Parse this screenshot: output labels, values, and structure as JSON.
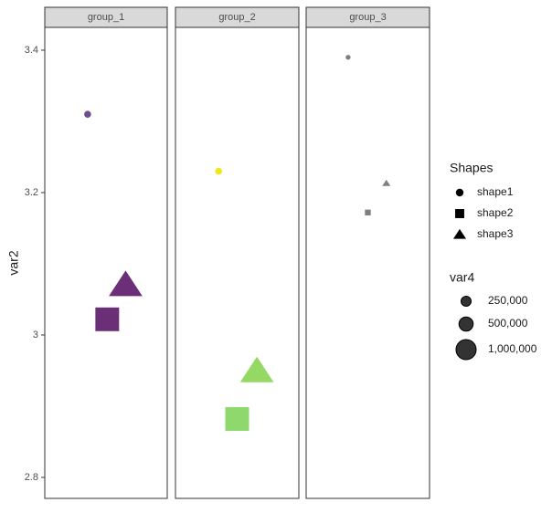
{
  "chart_data": {
    "type": "scatter",
    "y_label": "var2",
    "ylim": [
      2.7705,
      3.432
    ],
    "yticks": [
      2.8,
      3.0,
      3.2,
      3.4
    ],
    "xlim": [
      0,
      1
    ],
    "facets": [
      {
        "name": "group_1",
        "x": [
          0.35,
          0.51,
          0.66
        ],
        "y": [
          3.31,
          3.022,
          3.07
        ],
        "size": [
          120000,
          1000000,
          1000000
        ],
        "shapes": [
          "shape1",
          "shape2",
          "shape3"
        ],
        "colors": [
          "#6b4e8c",
          "#6a2f76",
          "#6a2f76"
        ]
      },
      {
        "name": "group_2",
        "x": [
          0.35,
          0.5,
          0.66
        ],
        "y": [
          3.23,
          2.882,
          2.949
        ],
        "size": [
          120000,
          1000000,
          1000000
        ],
        "shapes": [
          "shape1",
          "shape2",
          "shape3"
        ],
        "colors": [
          "#f2e61c",
          "#8ed86e",
          "#95d863"
        ]
      },
      {
        "name": "group_3",
        "x": [
          0.34,
          0.5,
          0.65
        ],
        "y": [
          3.39,
          3.172,
          3.213
        ],
        "size": [
          60000,
          60000,
          60000
        ],
        "shapes": [
          "shape1",
          "shape2",
          "shape3"
        ],
        "colors": [
          "#7f7f7f",
          "#7f7f7f",
          "#7f7f7f"
        ]
      }
    ],
    "shape_legend": {
      "title": "Shapes",
      "labels": [
        "shape1",
        "shape2",
        "shape3"
      ]
    },
    "size_legend": {
      "title": "var4",
      "values": [
        250000,
        500000,
        1000000
      ],
      "value_labels": [
        "250,000",
        "500,000",
        "1,000,000"
      ]
    }
  }
}
